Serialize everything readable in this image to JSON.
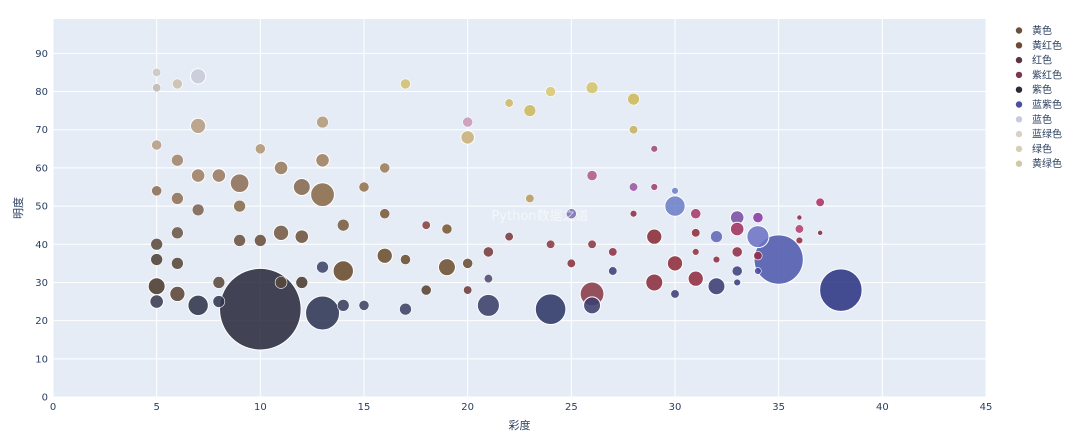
{
  "chart_data": {
    "type": "scatter",
    "xlabel": "彩度",
    "ylabel": "明度",
    "xlim": [
      0,
      45
    ],
    "ylim": [
      0,
      99
    ],
    "x_ticks": [
      0,
      5,
      10,
      15,
      20,
      25,
      30,
      35,
      40,
      45
    ],
    "y_ticks": [
      0,
      10,
      20,
      30,
      40,
      50,
      60,
      70,
      80,
      90
    ],
    "grid": true,
    "legend_position": "right",
    "background": "#e5ecf6",
    "series": [
      {
        "name": "黄色",
        "color": "#6b4f3a"
      },
      {
        "name": "黄红色",
        "color": "#6f4a32"
      },
      {
        "name": "红色",
        "color": "#5a3540"
      },
      {
        "name": "紫红色",
        "color": "#7a3850"
      },
      {
        "name": "紫色",
        "color": "#2e2a3a"
      },
      {
        "name": "蓝紫色",
        "color": "#4a4fa0"
      },
      {
        "name": "蓝色",
        "color": "#c8cbe0"
      },
      {
        "name": "蓝绿色",
        "color": "#d8d2c4"
      },
      {
        "name": "绿色",
        "color": "#d6cfb8"
      },
      {
        "name": "黄绿色",
        "color": "#cfc9a8"
      }
    ],
    "points": [
      {
        "x": 10,
        "y": 23,
        "s": 48,
        "c": "#2a2b3d"
      },
      {
        "x": 13,
        "y": 22,
        "s": 20,
        "c": "#2f3553"
      },
      {
        "x": 7,
        "y": 24,
        "s": 12,
        "c": "#30344b"
      },
      {
        "x": 5,
        "y": 29,
        "s": 10,
        "c": "#4a3a2e"
      },
      {
        "x": 6,
        "y": 27,
        "s": 9,
        "c": "#5a4635"
      },
      {
        "x": 24,
        "y": 23,
        "s": 18,
        "c": "#2d3566"
      },
      {
        "x": 38,
        "y": 28,
        "s": 25,
        "c": "#2e3583"
      },
      {
        "x": 35,
        "y": 36,
        "s": 29,
        "c": "#4e59ad"
      },
      {
        "x": 34,
        "y": 42,
        "s": 13,
        "c": "#6d74c4"
      },
      {
        "x": 30,
        "y": 50,
        "s": 12,
        "c": "#6d80c8"
      },
      {
        "x": 26,
        "y": 27,
        "s": 14,
        "c": "#8a3a48"
      },
      {
        "x": 26,
        "y": 24,
        "s": 10,
        "c": "#3e3f6e"
      },
      {
        "x": 21,
        "y": 24,
        "s": 13,
        "c": "#3b3f6a"
      },
      {
        "x": 13,
        "y": 53,
        "s": 14,
        "c": "#8a6a48"
      },
      {
        "x": 9,
        "y": 56,
        "s": 11,
        "c": "#8e7058"
      },
      {
        "x": 12,
        "y": 55,
        "s": 10,
        "c": "#86694f"
      },
      {
        "x": 7,
        "y": 84,
        "s": 9,
        "c": "#c8c9d8"
      },
      {
        "x": 7,
        "y": 71,
        "s": 9,
        "c": "#b59c82"
      },
      {
        "x": 14,
        "y": 33,
        "s": 12,
        "c": "#6a4a2e"
      },
      {
        "x": 16,
        "y": 37,
        "s": 9,
        "c": "#6b4e2e"
      },
      {
        "x": 19,
        "y": 34,
        "s": 10,
        "c": "#6e5032"
      },
      {
        "x": 29,
        "y": 30,
        "s": 10,
        "c": "#8a2e3e"
      },
      {
        "x": 31,
        "y": 31,
        "s": 9,
        "c": "#902c40"
      },
      {
        "x": 30,
        "y": 35,
        "s": 9,
        "c": "#8e2e3a"
      },
      {
        "x": 29,
        "y": 42,
        "s": 9,
        "c": "#8a2c36"
      },
      {
        "x": 32,
        "y": 29,
        "s": 10,
        "c": "#3a3c72"
      },
      {
        "x": 33,
        "y": 47,
        "s": 8,
        "c": "#7a4fa5"
      },
      {
        "x": 28,
        "y": 78,
        "s": 7,
        "c": "#cfb85a"
      },
      {
        "x": 26,
        "y": 81,
        "s": 7,
        "c": "#d4c46c"
      },
      {
        "x": 24,
        "y": 80,
        "s": 6,
        "c": "#d8c870"
      },
      {
        "x": 23,
        "y": 75,
        "s": 7,
        "c": "#cdb85c"
      },
      {
        "x": 20,
        "y": 68,
        "s": 8,
        "c": "#c8b07a"
      },
      {
        "x": 20,
        "y": 72,
        "s": 6,
        "c": "#c89ab8"
      },
      {
        "x": 17,
        "y": 82,
        "s": 6,
        "c": "#d0c070"
      },
      {
        "x": 5,
        "y": 85,
        "s": 5,
        "c": "#cbc6c0"
      },
      {
        "x": 5,
        "y": 81,
        "s": 5,
        "c": "#bfb8b0"
      },
      {
        "x": 6,
        "y": 82,
        "s": 6,
        "c": "#cbbfae"
      },
      {
        "x": 5,
        "y": 66,
        "s": 6,
        "c": "#b69c84"
      },
      {
        "x": 5,
        "y": 54,
        "s": 6,
        "c": "#8b6e58"
      },
      {
        "x": 5,
        "y": 40,
        "s": 7,
        "c": "#5b4a3e"
      },
      {
        "x": 5,
        "y": 36,
        "s": 7,
        "c": "#4e4036"
      },
      {
        "x": 5,
        "y": 25,
        "s": 8,
        "c": "#3a3c50"
      },
      {
        "x": 6,
        "y": 62,
        "s": 7,
        "c": "#a1846a"
      },
      {
        "x": 6,
        "y": 52,
        "s": 7,
        "c": "#8f7058"
      },
      {
        "x": 6,
        "y": 43,
        "s": 7,
        "c": "#6b5848"
      },
      {
        "x": 6,
        "y": 35,
        "s": 7,
        "c": "#574738"
      },
      {
        "x": 7,
        "y": 58,
        "s": 8,
        "c": "#9e8064"
      },
      {
        "x": 7,
        "y": 49,
        "s": 7,
        "c": "#7b6454"
      },
      {
        "x": 8,
        "y": 58,
        "s": 8,
        "c": "#9a7a62"
      },
      {
        "x": 8,
        "y": 30,
        "s": 7,
        "c": "#5a4a3e"
      },
      {
        "x": 8,
        "y": 25,
        "s": 7,
        "c": "#33354f"
      },
      {
        "x": 9,
        "y": 50,
        "s": 7,
        "c": "#8a6a4e"
      },
      {
        "x": 9,
        "y": 41,
        "s": 7,
        "c": "#6c5240"
      },
      {
        "x": 10,
        "y": 41,
        "s": 7,
        "c": "#6a4e3a"
      },
      {
        "x": 10,
        "y": 65,
        "s": 6,
        "c": "#b09676"
      },
      {
        "x": 11,
        "y": 60,
        "s": 8,
        "c": "#977a5e"
      },
      {
        "x": 11,
        "y": 43,
        "s": 9,
        "c": "#765a44"
      },
      {
        "x": 11,
        "y": 30,
        "s": 7,
        "c": "#55483c"
      },
      {
        "x": 12,
        "y": 42,
        "s": 8,
        "c": "#6e533e"
      },
      {
        "x": 12,
        "y": 30,
        "s": 7,
        "c": "#4a3a30"
      },
      {
        "x": 13,
        "y": 72,
        "s": 7,
        "c": "#b49a78"
      },
      {
        "x": 13,
        "y": 62,
        "s": 8,
        "c": "#a08060"
      },
      {
        "x": 13,
        "y": 34,
        "s": 7,
        "c": "#3e4468"
      },
      {
        "x": 14,
        "y": 45,
        "s": 7,
        "c": "#7a5c40"
      },
      {
        "x": 14,
        "y": 24,
        "s": 7,
        "c": "#393d5c"
      },
      {
        "x": 15,
        "y": 55,
        "s": 6,
        "c": "#927250"
      },
      {
        "x": 15,
        "y": 24,
        "s": 6,
        "c": "#3e4262"
      },
      {
        "x": 16,
        "y": 60,
        "s": 6,
        "c": "#9b7c5a"
      },
      {
        "x": 16,
        "y": 48,
        "s": 6,
        "c": "#7a5a3a"
      },
      {
        "x": 17,
        "y": 36,
        "s": 6,
        "c": "#6a4c30"
      },
      {
        "x": 17,
        "y": 23,
        "s": 7,
        "c": "#3e4266"
      },
      {
        "x": 18,
        "y": 28,
        "s": 6,
        "c": "#5a4232"
      },
      {
        "x": 18,
        "y": 45,
        "s": 5,
        "c": "#884040"
      },
      {
        "x": 19,
        "y": 44,
        "s": 6,
        "c": "#7a5834"
      },
      {
        "x": 20,
        "y": 35,
        "s": 6,
        "c": "#6a4c34"
      },
      {
        "x": 20,
        "y": 28,
        "s": 5,
        "c": "#6e3a3a"
      },
      {
        "x": 21,
        "y": 38,
        "s": 6,
        "c": "#7a3a3c"
      },
      {
        "x": 21,
        "y": 31,
        "s": 5,
        "c": "#4e4a6e"
      },
      {
        "x": 22,
        "y": 42,
        "s": 5,
        "c": "#7a3a40"
      },
      {
        "x": 22,
        "y": 77,
        "s": 5,
        "c": "#ccb868"
      },
      {
        "x": 23,
        "y": 52,
        "s": 5,
        "c": "#b89a60"
      },
      {
        "x": 24,
        "y": 40,
        "s": 5,
        "c": "#8a3a44"
      },
      {
        "x": 25,
        "y": 48,
        "s": 6,
        "c": "#7c70b0"
      },
      {
        "x": 25,
        "y": 35,
        "s": 5,
        "c": "#8a3040"
      },
      {
        "x": 26,
        "y": 58,
        "s": 6,
        "c": "#b05a8a"
      },
      {
        "x": 26,
        "y": 40,
        "s": 5,
        "c": "#8a3a44"
      },
      {
        "x": 27,
        "y": 33,
        "s": 5,
        "c": "#3e3f78"
      },
      {
        "x": 27,
        "y": 38,
        "s": 5,
        "c": "#8e3248"
      },
      {
        "x": 28,
        "y": 55,
        "s": 5,
        "c": "#9a58a0"
      },
      {
        "x": 28,
        "y": 70,
        "s": 5,
        "c": "#c8b060"
      },
      {
        "x": 28,
        "y": 48,
        "s": 4,
        "c": "#8a3048"
      },
      {
        "x": 29,
        "y": 65,
        "s": 4,
        "c": "#a04a7a"
      },
      {
        "x": 29,
        "y": 55,
        "s": 4,
        "c": "#a0406a"
      },
      {
        "x": 30,
        "y": 27,
        "s": 5,
        "c": "#3c4076"
      },
      {
        "x": 30,
        "y": 54,
        "s": 4,
        "c": "#7080c8"
      },
      {
        "x": 31,
        "y": 48,
        "s": 6,
        "c": "#a63a6a"
      },
      {
        "x": 31,
        "y": 43,
        "s": 5,
        "c": "#8e2e3e"
      },
      {
        "x": 31,
        "y": 38,
        "s": 4,
        "c": "#8e3244"
      },
      {
        "x": 32,
        "y": 42,
        "s": 7,
        "c": "#6068b8"
      },
      {
        "x": 32,
        "y": 36,
        "s": 4,
        "c": "#8e2e40"
      },
      {
        "x": 33,
        "y": 44,
        "s": 8,
        "c": "#a03260"
      },
      {
        "x": 33,
        "y": 38,
        "s": 6,
        "c": "#902e44"
      },
      {
        "x": 33,
        "y": 33,
        "s": 6,
        "c": "#3e4282"
      },
      {
        "x": 33,
        "y": 30,
        "s": 4,
        "c": "#3a3e80"
      },
      {
        "x": 34,
        "y": 47,
        "s": 6,
        "c": "#8a3aa0"
      },
      {
        "x": 34,
        "y": 37,
        "s": 5,
        "c": "#932c44"
      },
      {
        "x": 34,
        "y": 33,
        "s": 4,
        "c": "#4a4aa0"
      },
      {
        "x": 36,
        "y": 44,
        "s": 5,
        "c": "#b04070"
      },
      {
        "x": 36,
        "y": 41,
        "s": 4,
        "c": "#902e44"
      },
      {
        "x": 36,
        "y": 47,
        "s": 3,
        "c": "#8a2e40"
      },
      {
        "x": 37,
        "y": 51,
        "s": 5,
        "c": "#b0306a"
      },
      {
        "x": 37,
        "y": 43,
        "s": 3,
        "c": "#7a2e40"
      }
    ]
  },
  "watermark": "Python数据之道"
}
